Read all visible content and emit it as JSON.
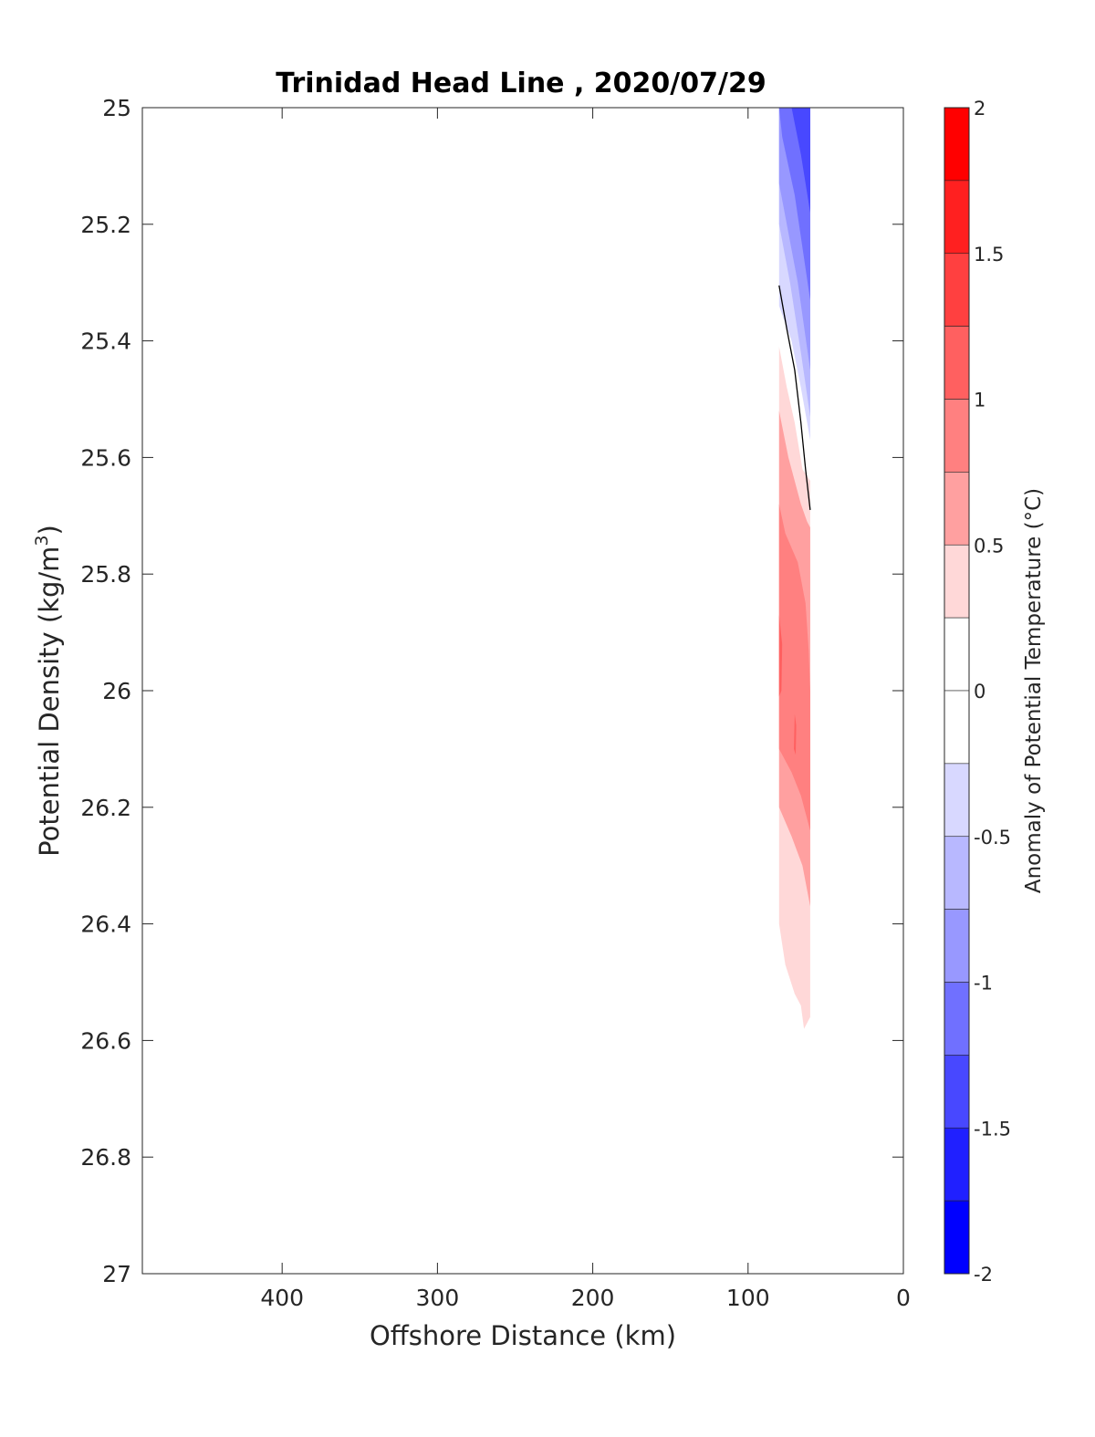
{
  "chart_data": {
    "type": "contourf",
    "title": "Trinidad Head Line , 2020/07/29",
    "xlabel": "Offshore Distance (km)",
    "ylabel_main": "Potential Density (kg/m",
    "ylabel_sup": "3",
    "ylabel_close": ")",
    "xlim": [
      490,
      0
    ],
    "x_reversed": true,
    "ylim": [
      25,
      27
    ],
    "y_reversed": true,
    "x_ticks": [
      "400",
      "300",
      "200",
      "100",
      "0"
    ],
    "x_tick_values": [
      400,
      300,
      200,
      100,
      0
    ],
    "y_ticks": [
      "25",
      "25.2",
      "25.4",
      "25.6",
      "25.8",
      "26",
      "26.2",
      "26.4",
      "26.6",
      "26.8",
      "27"
    ],
    "y_tick_values": [
      25,
      25.2,
      25.4,
      25.6,
      25.8,
      26,
      26.2,
      26.4,
      26.6,
      26.8,
      27
    ],
    "colorbar": {
      "label": "Anomaly of Potential Temperature (°C)",
      "range": [
        -2,
        2
      ],
      "ticks": [
        "2",
        "1.5",
        "1",
        "0.5",
        "0",
        "-0.5",
        "-1",
        "-1.5",
        "-2"
      ],
      "tick_values": [
        2,
        1.5,
        1,
        0.5,
        0,
        -0.5,
        -1,
        -1.5,
        -2
      ],
      "levels": [
        {
          "min": 1.75,
          "max": 2.0,
          "color": "#ff0000"
        },
        {
          "min": 1.5,
          "max": 1.75,
          "color": "#ff2020"
        },
        {
          "min": 1.25,
          "max": 1.5,
          "color": "#ff4040"
        },
        {
          "min": 1.0,
          "max": 1.25,
          "color": "#ff6060"
        },
        {
          "min": 0.75,
          "max": 1.0,
          "color": "#ff8080"
        },
        {
          "min": 0.5,
          "max": 0.75,
          "color": "#ffa0a0"
        },
        {
          "min": 0.25,
          "max": 0.5,
          "color": "#ffd8d8"
        },
        {
          "min": 0.0,
          "max": 0.25,
          "color": "#ffffff"
        },
        {
          "min": -0.25,
          "max": 0.0,
          "color": "#ffffff"
        },
        {
          "min": -0.5,
          "max": -0.25,
          "color": "#d8d8ff"
        },
        {
          "min": -0.75,
          "max": -0.5,
          "color": "#b8b8ff"
        },
        {
          "min": -1.0,
          "max": -0.75,
          "color": "#9898ff"
        },
        {
          "min": -1.25,
          "max": -1.0,
          "color": "#7070ff"
        },
        {
          "min": -1.5,
          "max": -1.25,
          "color": "#4848ff"
        },
        {
          "min": -1.75,
          "max": -1.5,
          "color": "#2020ff"
        },
        {
          "min": -2.0,
          "max": -1.75,
          "color": "#0000ff"
        }
      ]
    },
    "contour_regions": [
      {
        "name": "cold-anomaly-weak",
        "level": -0.5,
        "color": "#d8d8ff",
        "polygon": [
          [
            80,
            25.0
          ],
          [
            60,
            25.0
          ],
          [
            60,
            25.57
          ],
          [
            66,
            25.48
          ],
          [
            72,
            25.4
          ],
          [
            80,
            25.34
          ]
        ]
      },
      {
        "name": "cold-anomaly-moderate",
        "level": -0.75,
        "color": "#b8b8ff",
        "polygon": [
          [
            80,
            25.0
          ],
          [
            60,
            25.0
          ],
          [
            60,
            25.53
          ],
          [
            66,
            25.42
          ],
          [
            73,
            25.3
          ],
          [
            80,
            25.2
          ]
        ]
      },
      {
        "name": "cold-anomaly-strong",
        "level": -1.0,
        "color": "#9898ff",
        "polygon": [
          [
            80,
            25.0
          ],
          [
            60,
            25.0
          ],
          [
            60,
            25.45
          ],
          [
            68,
            25.3
          ],
          [
            80,
            25.13
          ]
        ]
      },
      {
        "name": "cold-anomaly-stronger",
        "level": -1.25,
        "color": "#7070ff",
        "polygon": [
          [
            80,
            25.0
          ],
          [
            60,
            25.0
          ],
          [
            60,
            25.33
          ],
          [
            70,
            25.15
          ],
          [
            78,
            25.05
          ]
        ]
      },
      {
        "name": "cold-anomaly-core",
        "level": -1.5,
        "color": "#4848ff",
        "polygon": [
          [
            72,
            25.0
          ],
          [
            60,
            25.0
          ],
          [
            60,
            25.18
          ],
          [
            66,
            25.08
          ]
        ]
      },
      {
        "name": "warm-anomaly-weak",
        "level": 0.25,
        "color": "#ffd8d8",
        "polygon": [
          [
            80,
            25.41
          ],
          [
            75,
            25.48
          ],
          [
            70,
            25.54
          ],
          [
            65,
            25.62
          ],
          [
            60,
            25.64
          ],
          [
            60,
            26.5
          ],
          [
            60,
            26.56
          ],
          [
            64,
            26.58
          ],
          [
            66,
            26.54
          ],
          [
            70,
            26.52
          ],
          [
            76,
            26.47
          ],
          [
            80,
            26.4
          ]
        ]
      },
      {
        "name": "warm-anomaly-moderate",
        "level": 0.5,
        "color": "#ffa0a0",
        "polygon": [
          [
            80,
            25.52
          ],
          [
            74,
            25.6
          ],
          [
            66,
            25.68
          ],
          [
            62,
            25.71
          ],
          [
            60,
            25.72
          ],
          [
            60,
            26.37
          ],
          [
            65,
            26.3
          ],
          [
            72,
            26.25
          ],
          [
            80,
            26.2
          ]
        ]
      },
      {
        "name": "warm-anomaly-strong",
        "level": 0.75,
        "color": "#ff8080",
        "polygon": [
          [
            80,
            25.68
          ],
          [
            76,
            25.73
          ],
          [
            68,
            25.78
          ],
          [
            63,
            25.85
          ],
          [
            61,
            25.93
          ],
          [
            60,
            26.0
          ],
          [
            60,
            26.24
          ],
          [
            66,
            26.18
          ],
          [
            72,
            26.14
          ],
          [
            80,
            26.1
          ]
        ]
      },
      {
        "name": "warm-anomaly-core-west",
        "level": 1.0,
        "color": "#ff6060",
        "polygon": [
          [
            80,
            25.87
          ],
          [
            78,
            25.92
          ],
          [
            78.5,
            26.0
          ],
          [
            80,
            26.01
          ]
        ]
      },
      {
        "name": "warm-anomaly-core-east",
        "level": 1.0,
        "color": "#ff6060",
        "polygon": [
          [
            70,
            26.04
          ],
          [
            69,
            26.06
          ],
          [
            69.3,
            26.11
          ],
          [
            70.5,
            26.1
          ]
        ]
      }
    ],
    "contour_lines": [
      {
        "name": "zero-contour-line",
        "color": "#000000",
        "points": [
          [
            80,
            25.305
          ],
          [
            75,
            25.38
          ],
          [
            70,
            25.45
          ],
          [
            66,
            25.54
          ],
          [
            63,
            25.62
          ],
          [
            60,
            25.69
          ]
        ]
      }
    ]
  }
}
